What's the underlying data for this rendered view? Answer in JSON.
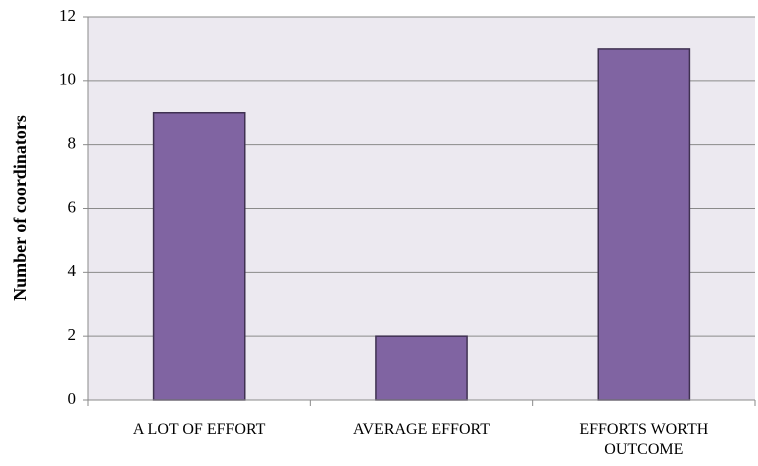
{
  "chart_data": {
    "type": "bar",
    "y_label": "Number of coordinators",
    "categories": [
      "A LOT OF EFFORT",
      "AVERAGE EFFORT",
      "EFFORTS WORTH OUTCOME"
    ],
    "values": [
      9,
      2,
      11
    ],
    "color": "#8064a2",
    "ylim": [
      0,
      12
    ],
    "yticks": [
      0,
      2,
      4,
      6,
      8,
      10,
      12
    ],
    "grid": true
  }
}
